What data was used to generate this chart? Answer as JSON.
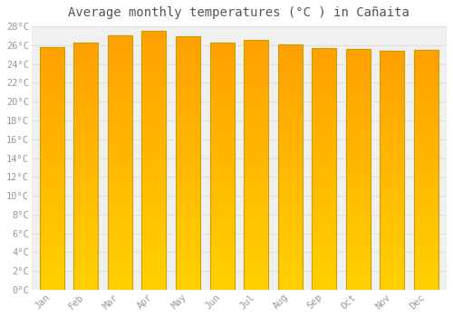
{
  "title": "Average monthly temperatures (°C ) in Cañaita",
  "months": [
    "Jan",
    "Feb",
    "Mar",
    "Apr",
    "May",
    "Jun",
    "Jul",
    "Aug",
    "Sep",
    "Oct",
    "Nov",
    "Dec"
  ],
  "values": [
    25.8,
    26.3,
    27.0,
    27.5,
    26.9,
    26.3,
    26.6,
    26.1,
    25.7,
    25.6,
    25.4,
    25.5
  ],
  "bar_color_bottom": "#FFD000",
  "bar_color_top": "#FFA000",
  "bar_edge_color": "#C8A000",
  "ylim": [
    0,
    28
  ],
  "ytick_step": 2,
  "background_color": "#ffffff",
  "plot_bg_color": "#f0f0f0",
  "grid_color": "#e0e0e0",
  "title_fontsize": 10,
  "tick_fontsize": 7.5,
  "tick_color": "#999999",
  "title_color": "#555555",
  "bar_width": 0.72,
  "num_grad_steps": 200
}
